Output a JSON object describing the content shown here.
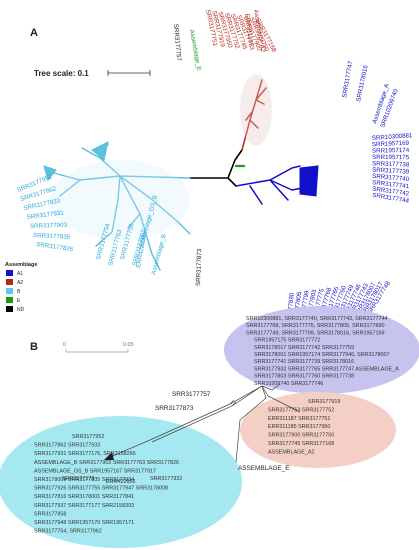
{
  "panel_a": {
    "label": "A",
    "tree_scale": "Tree scale: 0.1",
    "legend": {
      "title": "Assemblage",
      "items": [
        {
          "label": "A1",
          "color": "#1010c8"
        },
        {
          "label": "A2",
          "color": "#b02818"
        },
        {
          "label": "B",
          "color": "#60c8e8"
        },
        {
          "label": "E",
          "color": "#1a9a1a"
        },
        {
          "label": "ND",
          "color": "#000000"
        }
      ]
    },
    "labels": {
      "srr3177757": "SRR3177757",
      "assemblage_e": "Assemblage_E",
      "srr3177873": "SRR3177873",
      "assemblage_a2": "Assemblage A2",
      "err311187": "ERR311187",
      "assemblage_a": "Assemblage_A",
      "srr10209740": "SRR10209740",
      "srr3177747": "SRR3177747",
      "srr3178016": "SRR3178016",
      "assemblage_gsb": "Assemblage_GS_B",
      "assemblage_b": "Assemblage_B",
      "err422656": "ERR422656"
    },
    "red_leaves": [
      "SRR3177751",
      "SRR3177919",
      "SRR3177950",
      "SRR3177752",
      "SRR3177745",
      "SRR3177753",
      "SRR3177900",
      "SRR3177750",
      "SRR3177168"
    ],
    "blue_leaves_top": [
      "SRR10300881",
      "SRR1957169",
      "SRR1957174",
      "SRR1957175",
      "SRR3177738",
      "SRR3177739",
      "SRR3177740",
      "SRR3177741",
      "SRR3177742",
      "SRR3177744"
    ],
    "blue_leaves_bottom": [
      "SRR3177890",
      "SRR3177805",
      "SRR3177799",
      "SRR3177803",
      "SRR3177775",
      "SRR3177768",
      "SRR3177765",
      "SRR3177760",
      "SRR3177749",
      "SRR3177746",
      "SRR3177743",
      "SRR3178007",
      "SRR3178017",
      "SRR3177748"
    ],
    "cyan_leaves_left": [
      "SRR3177952",
      "SRR3177862",
      "SRR3177933",
      "SRR3177931",
      "SRR3177903",
      "SRR3177835",
      "SRR3177826"
    ],
    "cyan_leaves_bottom": [
      "SRR3177754",
      "SRR3177763",
      "SRR3177755",
      "SRR3177962"
    ]
  },
  "panel_b": {
    "label": "B",
    "scale": [
      "0",
      "0.05"
    ],
    "srr3177757": "SRR3177757",
    "srr3177873": "SRR3177873",
    "assemblage_e": "ASSEMBLAGE_E",
    "blue_rows": [
      "SRR10300881, SRR3177740, SRR3177743, SRR3177744",
      "SRR3177768, SRR3177775, SRR3177805, SRR3177890",
      "SRR3177749, SRR3177799, SRR3178016, SRR1957169",
      "SRR1957175 SRR3177772",
      "SRR3178017 SRR3177742 SRR3177759",
      "SRR3178001 SRR1957174 SRR3177946, SRR3178007",
      "SRR3177741 SRR3177739 SRR3178016",
      "SRR3177932 SRR3177765 SRR3177747 ASSEMBLAGE_A",
      "SRR3177803 SRR3177760 SRR3177738",
      "SRR10209740 SRR3177746"
    ],
    "red_rows": [
      "SRR3177919",
      "SRR3177753 SRR3177752",
      "ERR311187 SRR3177751",
      "ERR311185 SRR3177950",
      "SRR3177900 SRR3177750",
      "SRR3177745 SRR3177168",
      "ASSEMBLAGE_A2"
    ],
    "cyan_rows": [
      "SRR3177952",
      "SRR3177862 SRR3177933",
      "SRR3177931 SRR3177176, SRR2158266",
      "ASSEMBLAGE_B SRR3177903 SRR3177763 SRR3177826",
      "ASSEMBLAGE_GS_B SRR1957167 SRR3177917",
      "SRR3178009 SRR3177835 SRR3177934",
      "SRR3177926 SRR3177755 SRR3177947 SRR3178008",
      "SRR3177816 SRR3178001 SRR3177841",
      "SRR3177937 SRR3177177 SRR2158393",
      "SRR3177858",
      "SRR3177948 SRR1957170 SRR1957171",
      "SRR3177754, SRR3177962"
    ],
    "cyan_mid": [
      "SRR3177173",
      "ERR422656",
      "SRR3177932"
    ]
  }
}
